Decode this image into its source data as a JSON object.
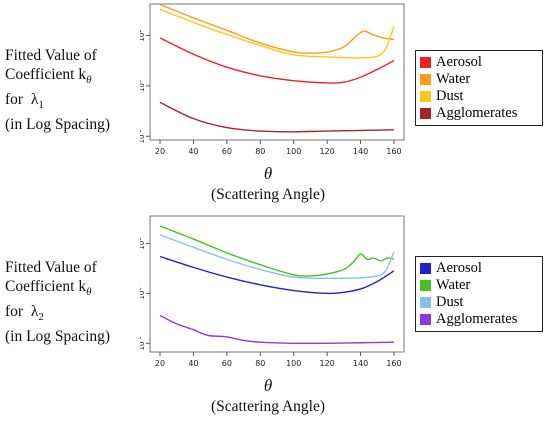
{
  "chart_data": [
    {
      "type": "line",
      "ylabel_lines": [
        "Fitted Value of",
        "Coefficient k",
        "for  λ",
        "(in Log Spacing)"
      ],
      "ylabel_sub": {
        "k": "θ",
        "lambda": "1"
      },
      "xlabel_symbol": "θ",
      "xlabel": "(Scattering Angle)",
      "xlim": [
        14,
        166
      ],
      "ylim_log10": [
        -2.15,
        3.25
      ],
      "x_ticks": [
        "20",
        "40",
        "60",
        "80",
        "100",
        "120",
        "140",
        "160"
      ],
      "y_ticks": [
        {
          "base": "10",
          "exp": "2",
          "log": 2
        },
        {
          "base": "10",
          "exp": "0",
          "log": 0
        },
        {
          "base": "10",
          "exp": "-2",
          "log": -2
        }
      ],
      "y_scale": "log",
      "legend_position": "right",
      "series": [
        {
          "name": "Aerosol",
          "color": "#ee2222",
          "x": [
            20,
            40,
            60,
            80,
            100,
            120,
            130,
            140,
            150,
            160
          ],
          "y": [
            80,
            18,
            5.5,
            2.5,
            1.6,
            1.3,
            1.4,
            2.2,
            4.5,
            10
          ]
        },
        {
          "name": "Water",
          "color": "#ff9a1a",
          "x": [
            20,
            40,
            60,
            80,
            100,
            110,
            120,
            130,
            137,
            142,
            147,
            152,
            156,
            160
          ],
          "y": [
            1700,
            500,
            160,
            50,
            22,
            20,
            22,
            35,
            90,
            150,
            110,
            85,
            75,
            70
          ]
        },
        {
          "name": "Dust",
          "color": "#ffc61a",
          "x": [
            20,
            40,
            60,
            80,
            100,
            120,
            140,
            150,
            155,
            160
          ],
          "y": [
            1100,
            330,
            110,
            40,
            17,
            14,
            13,
            15,
            30,
            220
          ]
        },
        {
          "name": "Agglomerates",
          "color": "#a8242a",
          "x": [
            20,
            40,
            60,
            80,
            100,
            120,
            140,
            160
          ],
          "y": [
            0.22,
            0.05,
            0.022,
            0.016,
            0.015,
            0.016,
            0.017,
            0.018
          ]
        }
      ]
    },
    {
      "type": "line",
      "ylabel_lines": [
        "Fitted Value of",
        "Coefficient k",
        "for  λ",
        "(in Log Spacing)"
      ],
      "ylabel_sub": {
        "k": "θ",
        "lambda": "2"
      },
      "xlabel_symbol": "θ",
      "xlabel": "(Scattering Angle)",
      "xlim": [
        14,
        166
      ],
      "ylim_log10": [
        -1.35,
        4.1
      ],
      "x_ticks": [
        "20",
        "40",
        "60",
        "80",
        "100",
        "120",
        "140",
        "160"
      ],
      "y_ticks": [
        {
          "base": "10",
          "exp": "3",
          "log": 3
        },
        {
          "base": "10",
          "exp": "1",
          "log": 1
        },
        {
          "base": "10",
          "exp": "-1",
          "log": -1
        }
      ],
      "y_scale": "log",
      "legend_position": "right",
      "series": [
        {
          "name": "Aerosol",
          "color": "#2323cc",
          "x": [
            20,
            40,
            60,
            80,
            100,
            120,
            130,
            140,
            150,
            160
          ],
          "y": [
            300,
            110,
            45,
            22,
            13,
            10,
            11,
            15,
            30,
            80
          ]
        },
        {
          "name": "Water",
          "color": "#44c21c",
          "x": [
            20,
            40,
            60,
            80,
            100,
            110,
            120,
            130,
            136,
            140,
            144,
            148,
            152,
            156,
            160
          ],
          "y": [
            5000,
            1500,
            420,
            140,
            55,
            50,
            60,
            90,
            190,
            380,
            230,
            260,
            200,
            260,
            230
          ]
        },
        {
          "name": "Dust",
          "color": "#88c0f0",
          "x": [
            20,
            40,
            60,
            80,
            100,
            120,
            140,
            150,
            155,
            160
          ],
          "y": [
            2200,
            700,
            230,
            90,
            45,
            40,
            42,
            50,
            80,
            450
          ]
        },
        {
          "name": "Agglomerates",
          "color": "#8a3ae0",
          "x": [
            20,
            30,
            40,
            45,
            50,
            60,
            70,
            80,
            100,
            120,
            140,
            160
          ],
          "y": [
            1.3,
            0.6,
            0.35,
            0.25,
            0.2,
            0.18,
            0.13,
            0.11,
            0.1,
            0.1,
            0.105,
            0.11
          ]
        }
      ]
    }
  ]
}
